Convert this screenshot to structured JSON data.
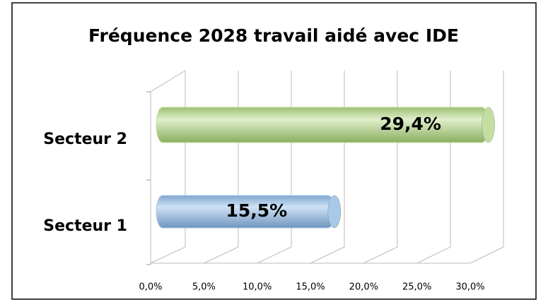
{
  "chart_data": {
    "type": "bar",
    "orientation": "horizontal",
    "title": "Fréquence 2028 travail aidé avec IDE",
    "categories": [
      "Secteur 1",
      "Secteur 2"
    ],
    "values": [
      15.5,
      29.4
    ],
    "value_labels": [
      "15,5%",
      "29,4%"
    ],
    "colors": [
      "#a9c9ea",
      "#c4dea2"
    ],
    "xlim": [
      0,
      30
    ],
    "xticks": [
      {
        "value": 0,
        "label": "0,0%"
      },
      {
        "value": 5,
        "label": "5,0%"
      },
      {
        "value": 10,
        "label": "10,0%"
      },
      {
        "value": 15,
        "label": "15,0%"
      },
      {
        "value": 20,
        "label": "20,0%"
      },
      {
        "value": 25,
        "label": "25,0%"
      },
      {
        "value": 30,
        "label": "30,0%"
      }
    ],
    "grid": true
  }
}
